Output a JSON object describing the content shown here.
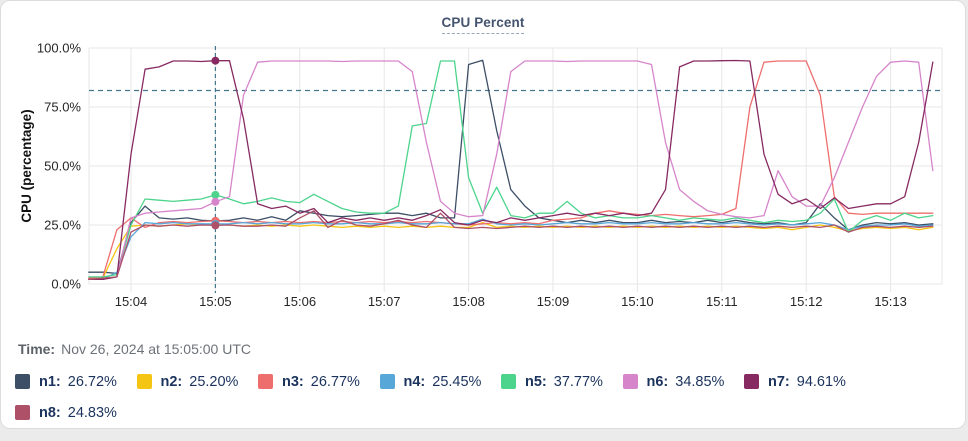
{
  "time": {
    "label": "Time:",
    "value": "Nov 26, 2024 at 15:05:00 UTC"
  },
  "colors": {
    "card_background": "#ffffff",
    "page_background": "#ebebeb",
    "grid": "#e7e7e7",
    "tick_text": "#262626",
    "title_text": "#44546f",
    "legend_text": "#1b335c",
    "threshold_line": "#44798c",
    "crosshair_line": "#44798c"
  },
  "chart_data": {
    "type": "line",
    "title": "CPU Percent",
    "ylabel": "CPU (percentage)",
    "ylim": [
      0,
      100
    ],
    "grid": "on",
    "legend_position": "bottom",
    "y_ticks": [
      {
        "label": "0.0%",
        "value": 0
      },
      {
        "label": "25.0%",
        "value": 25
      },
      {
        "label": "50.0%",
        "value": 50
      },
      {
        "label": "75.0%",
        "value": 75
      },
      {
        "label": "100.0%",
        "value": 100
      }
    ],
    "x_ticks": [
      {
        "label": "15:04",
        "seconds": 30
      },
      {
        "label": "15:05",
        "seconds": 90
      },
      {
        "label": "15:06",
        "seconds": 150
      },
      {
        "label": "15:07",
        "seconds": 210
      },
      {
        "label": "15:08",
        "seconds": 270
      },
      {
        "label": "15:09",
        "seconds": 330
      },
      {
        "label": "15:10",
        "seconds": 390
      },
      {
        "label": "15:11",
        "seconds": 450
      },
      {
        "label": "15:12",
        "seconds": 510
      },
      {
        "label": "15:13",
        "seconds": 570
      }
    ],
    "start_time": "15:03:30",
    "sample_interval_seconds": 10,
    "threshold_value": 82,
    "crosshair": {
      "time": "15:05:00",
      "seconds": 90
    },
    "series": [
      {
        "name": "n1",
        "label": "n1:",
        "legend_value": "26.72%",
        "value": 26.72,
        "color": "#3d4f66",
        "values": [
          5,
          5,
          4.5,
          26,
          33,
          28,
          27.5,
          28,
          27,
          26.72,
          27,
          28,
          27,
          28.5,
          27,
          31,
          30,
          29,
          28.5,
          29,
          29.5,
          30,
          30,
          29,
          30,
          28,
          28,
          93,
          94.8,
          65,
          40,
          33,
          28,
          27,
          26,
          27,
          26,
          27,
          26,
          26,
          27,
          26,
          26.5,
          26,
          27,
          26,
          27,
          26,
          25.5,
          26,
          25,
          26,
          34,
          28,
          23,
          25,
          26,
          25.5,
          26,
          25,
          25.5
        ]
      },
      {
        "name": "n2",
        "label": "n2:",
        "legend_value": "25.20%",
        "value": 25.2,
        "color": "#f5c513",
        "values": [
          2,
          2.5,
          15,
          24.5,
          25,
          24.5,
          25,
          25.5,
          25,
          25.2,
          25,
          24.5,
          25,
          24.5,
          25,
          24.5,
          25,
          24.5,
          24,
          24.5,
          24,
          24.5,
          24,
          24.5,
          24,
          24.5,
          24,
          24,
          26,
          24,
          24.5,
          24,
          24.5,
          24,
          24.5,
          24,
          24.5,
          24,
          24.5,
          24,
          24.5,
          24,
          24.5,
          24,
          24.5,
          24,
          24.5,
          24,
          23.5,
          24,
          23,
          24,
          25,
          24,
          22.5,
          23.5,
          24,
          23.5,
          24,
          23,
          24
        ]
      },
      {
        "name": "n3",
        "label": "n3:",
        "legend_value": "26.77%",
        "value": 26.77,
        "color": "#ee6e6e",
        "values": [
          2.5,
          3,
          23,
          28,
          24,
          26,
          26.5,
          26,
          26.5,
          26.77,
          26.5,
          26,
          26.5,
          26,
          26.5,
          26,
          26.5,
          26,
          26.5,
          26,
          26.5,
          26,
          26.5,
          26,
          26.5,
          26,
          25.5,
          25,
          25.5,
          26,
          25.5,
          26,
          25.5,
          27,
          27.5,
          28,
          30,
          31,
          30,
          29.5,
          29,
          29.5,
          29,
          28.5,
          29,
          29.5,
          32,
          75,
          94,
          94.5,
          94.5,
          94.5,
          80,
          37,
          30,
          29.5,
          30,
          30,
          30,
          30,
          30
        ]
      },
      {
        "name": "n4",
        "label": "n4:",
        "legend_value": "25.45%",
        "value": 25.45,
        "color": "#57a7d9",
        "values": [
          2,
          2,
          5,
          20,
          26,
          25.5,
          26,
          25.5,
          25.5,
          25.45,
          25.5,
          26,
          25.5,
          26,
          25.5,
          25.5,
          26,
          25.5,
          25.5,
          26,
          25.5,
          25.5,
          26,
          25.5,
          25.5,
          26,
          25.5,
          25.5,
          27.5,
          25.5,
          25,
          25.5,
          25,
          25.5,
          26,
          25.5,
          25.5,
          26,
          25.5,
          25.5,
          26,
          25.5,
          25.5,
          26,
          25.5,
          25.5,
          26,
          25.5,
          25,
          25.5,
          25,
          25.5,
          26,
          25,
          23,
          24.5,
          25,
          25,
          25.5,
          24.5,
          25
        ]
      },
      {
        "name": "n5",
        "label": "n5:",
        "legend_value": "37.77%",
        "value": 37.77,
        "color": "#4cd48c",
        "values": [
          3,
          3,
          4,
          25,
          36,
          35.5,
          35,
          35.5,
          36,
          37.77,
          36,
          34,
          35,
          36.5,
          35,
          34.5,
          38,
          35,
          32,
          30.5,
          30,
          30,
          33,
          67,
          68,
          94.5,
          94.5,
          45,
          30,
          41,
          29,
          28,
          30,
          30,
          35,
          30,
          28,
          29,
          28,
          28,
          29,
          28,
          27,
          28,
          27.5,
          27,
          28,
          27,
          26,
          27,
          26.5,
          27,
          30,
          36,
          22,
          27,
          29,
          27,
          30,
          28,
          29
        ]
      },
      {
        "name": "n6",
        "label": "n6:",
        "legend_value": "34.85%",
        "value": 34.85,
        "color": "#d685ca",
        "values": [
          2,
          2,
          3,
          28,
          30,
          30.5,
          31,
          31.5,
          32,
          34.85,
          37,
          80,
          94,
          94.5,
          94.5,
          94.5,
          94.5,
          94.5,
          94.3,
          94.5,
          94.5,
          94.5,
          94.5,
          90,
          60,
          35,
          30,
          28.5,
          29,
          55,
          90,
          94.5,
          94.5,
          94.5,
          94.3,
          94.5,
          94.5,
          94.5,
          94.5,
          94.5,
          93,
          60,
          40,
          35,
          31,
          29.5,
          28.5,
          28,
          29,
          48,
          37,
          33,
          33,
          45,
          60,
          75,
          88,
          94,
          94.5,
          94,
          48
        ]
      },
      {
        "name": "n7",
        "label": "n7:",
        "legend_value": "94.61%",
        "value": 94.61,
        "color": "#872a61",
        "values": [
          2,
          2,
          3,
          55,
          91,
          92,
          94.5,
          94.5,
          94.3,
          94.61,
          94.6,
          70,
          34,
          32,
          33,
          30,
          32,
          26,
          28,
          27,
          28,
          27,
          28,
          27,
          29,
          31.5,
          26,
          25,
          27,
          26,
          28,
          27,
          28,
          29,
          30,
          29,
          30,
          29,
          30,
          29,
          30,
          40,
          92,
          94.5,
          94.5,
          94.6,
          94.7,
          94.5,
          55,
          38,
          34,
          36,
          32,
          36.5,
          32,
          33,
          34,
          34,
          37,
          60,
          94
        ]
      },
      {
        "name": "n8",
        "label": "n8:",
        "legend_value": "24.83%",
        "value": 24.83,
        "color": "#ad5068",
        "values": [
          2,
          2.5,
          3,
          22,
          25,
          24.5,
          25,
          24.5,
          25,
          24.83,
          25,
          24.5,
          24.5,
          25,
          24.5,
          28,
          31,
          24,
          27,
          25,
          24.5,
          25.5,
          27,
          25,
          24,
          30,
          24,
          23.5,
          24,
          23.5,
          24,
          24.5,
          24,
          24.5,
          24,
          24.5,
          24,
          24.5,
          24,
          24.5,
          24,
          24.5,
          24,
          24.5,
          24,
          24.5,
          24,
          24.5,
          24,
          24.5,
          24,
          24.5,
          24,
          25,
          22,
          24,
          24.5,
          24,
          24.5,
          24,
          24.5
        ]
      }
    ]
  }
}
